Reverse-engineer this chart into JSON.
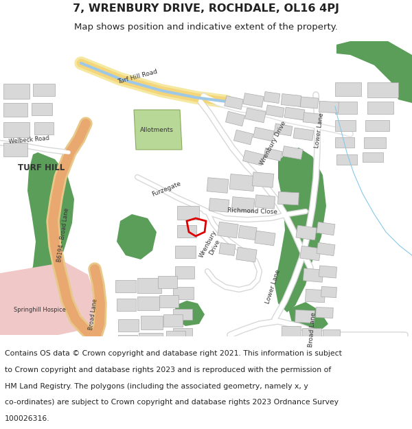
{
  "title": "7, WRENBURY DRIVE, ROCHDALE, OL16 4PJ",
  "subtitle": "Map shows position and indicative extent of the property.",
  "footer_line1": "Contains OS data © Crown copyright and database right 2021. This information is subject",
  "footer_line2": "to Crown copyright and database rights 2023 and is reproduced with the permission of",
  "footer_line3": "HM Land Registry. The polygons (including the associated geometry, namely x, y",
  "footer_line4": "co-ordinates) are subject to Crown copyright and database rights 2023 Ordnance Survey",
  "footer_line5": "100026316.",
  "map_bg": "#f7f7f7",
  "road_yellow": "#f5d57a",
  "road_blue": "#9ec8e8",
  "road_cream": "#f5e8b0",
  "road_orange": "#e8a870",
  "road_white": "#e8e8e8",
  "road_edge": "#cccccc",
  "green_dark": "#5a9e5a",
  "green_med": "#6aaa6a",
  "allotment": "#b8d898",
  "building_fill": "#d8d8d8",
  "building_edge": "#aaaaaa",
  "hospice_fill": "#f0c8c8",
  "plot_red": "#dd0000",
  "text_dark": "#222222",
  "title_size": 11.5,
  "subtitle_size": 9.5,
  "footer_size": 7.8
}
